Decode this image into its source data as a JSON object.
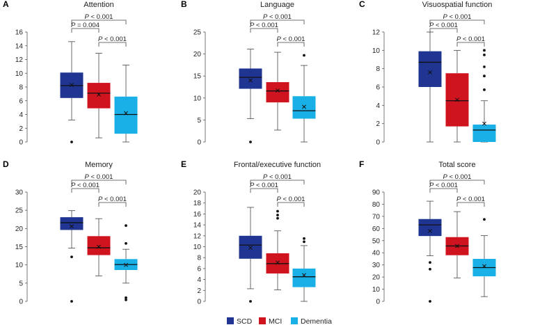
{
  "colors": {
    "SCD": "#1f3591",
    "MCI": "#d0141f",
    "Dementia": "#19b0e7"
  },
  "legend": [
    {
      "name": "SCD",
      "label": "SCD",
      "color": "#1f3591"
    },
    {
      "name": "MCI",
      "label": "MCI",
      "color": "#d0141f"
    },
    {
      "name": "Dementia",
      "label": "Dementia",
      "color": "#19b0e7"
    }
  ],
  "chart_data": [
    {
      "type": "box",
      "panel": "A",
      "title": "Attention",
      "ylim": [
        0,
        16
      ],
      "yticks": [
        0,
        2,
        4,
        6,
        8,
        10,
        12,
        14,
        16
      ],
      "groups": [
        {
          "name": "SCD",
          "whislo": 3.2,
          "q1": 6.4,
          "med": 8.2,
          "q3": 10.1,
          "whishi": 14.6,
          "mean": 8.3,
          "fliers": [
            0
          ]
        },
        {
          "name": "MCI",
          "whislo": 0.6,
          "q1": 4.9,
          "med": 7.1,
          "q3": 8.6,
          "whishi": 12.9,
          "mean": 6.9,
          "fliers": []
        },
        {
          "name": "Dementia",
          "whislo": 0,
          "q1": 1.2,
          "med": 4.0,
          "q3": 6.6,
          "whishi": 11.2,
          "mean": 4.2,
          "fliers": []
        }
      ],
      "comparisons": [
        {
          "groups": [
            0,
            2
          ],
          "label": "P < 0.001"
        },
        {
          "groups": [
            0,
            1
          ],
          "label": "P = 0.004"
        },
        {
          "groups": [
            1,
            2
          ],
          "label": "P < 0.001"
        }
      ]
    },
    {
      "type": "box",
      "panel": "B",
      "title": "Language",
      "ylim": [
        0,
        25
      ],
      "yticks": [
        0,
        5,
        10,
        15,
        20,
        25
      ],
      "groups": [
        {
          "name": "SCD",
          "whislo": 5.3,
          "q1": 12.1,
          "med": 14.7,
          "q3": 16.7,
          "whishi": 21.1,
          "mean": 14.0,
          "fliers": [
            0
          ]
        },
        {
          "name": "MCI",
          "whislo": 2.7,
          "q1": 9.0,
          "med": 11.6,
          "q3": 13.6,
          "whishi": 20.4,
          "mean": 11.7,
          "fliers": []
        },
        {
          "name": "Dementia",
          "whislo": 0,
          "q1": 5.3,
          "med": 7.1,
          "q3": 10.4,
          "whishi": 17.4,
          "mean": 8.0,
          "fliers": [
            19.7
          ]
        }
      ],
      "comparisons": [
        {
          "groups": [
            0,
            2
          ],
          "label": "P < 0.001"
        },
        {
          "groups": [
            0,
            1
          ],
          "label": "P < 0.001"
        },
        {
          "groups": [
            1,
            2
          ],
          "label": "P < 0.001"
        }
      ]
    },
    {
      "type": "box",
      "panel": "C",
      "title": "Visuospatial function",
      "ylim": [
        0,
        12
      ],
      "yticks": [
        0,
        2,
        4,
        6,
        8,
        10,
        12
      ],
      "groups": [
        {
          "name": "SCD",
          "whislo": 0,
          "q1": 6.0,
          "med": 8.7,
          "q3": 9.9,
          "whishi": 12.0,
          "mean": 7.6,
          "fliers": []
        },
        {
          "name": "MCI",
          "whislo": 0,
          "q1": 1.7,
          "med": 4.5,
          "q3": 7.5,
          "whishi": 10.0,
          "mean": 4.6,
          "fliers": []
        },
        {
          "name": "Dementia",
          "whislo": 0,
          "q1": 0,
          "med": 1.3,
          "q3": 1.9,
          "whishi": 4.5,
          "mean": 2.0,
          "fliers": [
            5.7,
            7.2,
            8.2,
            9.5,
            10.0
          ]
        }
      ],
      "comparisons": [
        {
          "groups": [
            0,
            2
          ],
          "label": "P < 0.001"
        },
        {
          "groups": [
            0,
            1
          ],
          "label": "P < 0.001"
        },
        {
          "groups": [
            1,
            2
          ],
          "label": "P < 0.001"
        }
      ]
    },
    {
      "type": "box",
      "panel": "D",
      "title": "Memory",
      "ylim": [
        0,
        30
      ],
      "yticks": [
        0,
        5,
        10,
        15,
        20,
        25,
        30
      ],
      "groups": [
        {
          "name": "SCD",
          "whislo": 14.6,
          "q1": 19.6,
          "med": 21.6,
          "q3": 23.1,
          "whishi": 24.9,
          "mean": 20.6,
          "fliers": [
            12.2,
            0
          ]
        },
        {
          "name": "MCI",
          "whislo": 7.0,
          "q1": 12.7,
          "med": 14.7,
          "q3": 17.9,
          "whishi": 22.7,
          "mean": 15.0,
          "fliers": []
        },
        {
          "name": "Dementia",
          "whislo": 5.0,
          "q1": 8.6,
          "med": 10.1,
          "q3": 11.6,
          "whishi": 14.3,
          "mean": 10.0,
          "fliers": [
            15.9,
            20.8,
            1.0,
            0.4
          ]
        }
      ],
      "comparisons": [
        {
          "groups": [
            0,
            2
          ],
          "label": "P < 0.001"
        },
        {
          "groups": [
            0,
            1
          ],
          "label": "P < 0.001"
        },
        {
          "groups": [
            1,
            2
          ],
          "label": "P < 0.001"
        }
      ]
    },
    {
      "type": "box",
      "panel": "E",
      "title": "Frontal/executive function",
      "ylim": [
        0,
        20
      ],
      "yticks": [
        0,
        2,
        4,
        6,
        8,
        10,
        12,
        14,
        16,
        18,
        20
      ],
      "groups": [
        {
          "name": "SCD",
          "whislo": 2.3,
          "q1": 7.8,
          "med": 10.3,
          "q3": 12.0,
          "whishi": 17.2,
          "mean": 9.8,
          "fliers": [
            0
          ]
        },
        {
          "name": "MCI",
          "whislo": 2.1,
          "q1": 5.1,
          "med": 6.9,
          "q3": 8.8,
          "whishi": 12.9,
          "mean": 7.1,
          "fliers": [
            15.2,
            15.8,
            16.5
          ]
        },
        {
          "name": "Dementia",
          "whislo": 0,
          "q1": 2.6,
          "med": 4.5,
          "q3": 6.0,
          "whishi": 10.2,
          "mean": 4.8,
          "fliers": [
            10.9,
            11.5
          ]
        }
      ],
      "comparisons": [
        {
          "groups": [
            0,
            2
          ],
          "label": "P < 0.001"
        },
        {
          "groups": [
            0,
            1
          ],
          "label": "P < 0.001"
        },
        {
          "groups": [
            1,
            2
          ],
          "label": "P < 0.001"
        }
      ]
    },
    {
      "type": "box",
      "panel": "F",
      "title": "Total score",
      "ylim": [
        0,
        90
      ],
      "yticks": [
        0,
        10,
        20,
        30,
        40,
        50,
        60,
        70,
        80,
        90
      ],
      "groups": [
        {
          "name": "SCD",
          "whislo": 37.5,
          "q1": 53.8,
          "med": 63.0,
          "q3": 67.8,
          "whishi": 82.5,
          "mean": 58.0,
          "fliers": [
            32.0,
            26.5,
            0
          ]
        },
        {
          "name": "MCI",
          "whislo": 19.3,
          "q1": 38.0,
          "med": 45.6,
          "q3": 52.9,
          "whishi": 73.9,
          "mean": 45.5,
          "fliers": []
        },
        {
          "name": "Dementia",
          "whislo": 3.9,
          "q1": 20.6,
          "med": 27.8,
          "q3": 35.0,
          "whishi": 54.1,
          "mean": 29.0,
          "fliers": [
            67.5
          ]
        }
      ],
      "comparisons": [
        {
          "groups": [
            0,
            2
          ],
          "label": "P < 0.001"
        },
        {
          "groups": [
            0,
            1
          ],
          "label": "P < 0.001"
        },
        {
          "groups": [
            1,
            2
          ],
          "label": "P < 0.001"
        }
      ]
    }
  ]
}
